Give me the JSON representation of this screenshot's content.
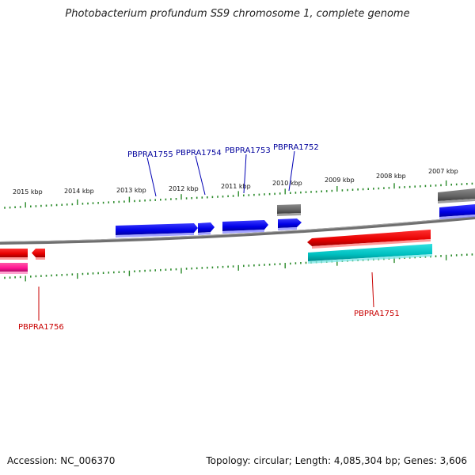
{
  "title": "Photobacterium profundum SS9 chromosome 1, complete genome",
  "ticks": [
    "2015 kbp",
    "2014 kbp",
    "2013 kbp",
    "2012 kbp",
    "2011 kbp",
    "2010 kbp",
    "2009 kbp",
    "2008 kbp",
    "2007 kbp"
  ],
  "genes_top": [
    "PBPRA1755",
    "PBPRA1754",
    "PBPRA1753",
    "PBPRA1752"
  ],
  "genes_bottom": [
    "PBPRA1756",
    "PBPRA1751"
  ],
  "colors": {
    "blue_gene": "#0000e6",
    "red_gene": "#e60000",
    "cyan_gene": "#00c8c8",
    "gray_gene": "#646464",
    "pink_gene": "#ff1493",
    "ruler": "#2a8a2a",
    "chromosome": "#808080",
    "label_top": "#00009c",
    "label_bottom": "#c80000"
  },
  "footer": {
    "accession": "Accession: NC_006370",
    "stats": "Topology: circular; Length: 4,085,304 bp; Genes: 3,606"
  }
}
